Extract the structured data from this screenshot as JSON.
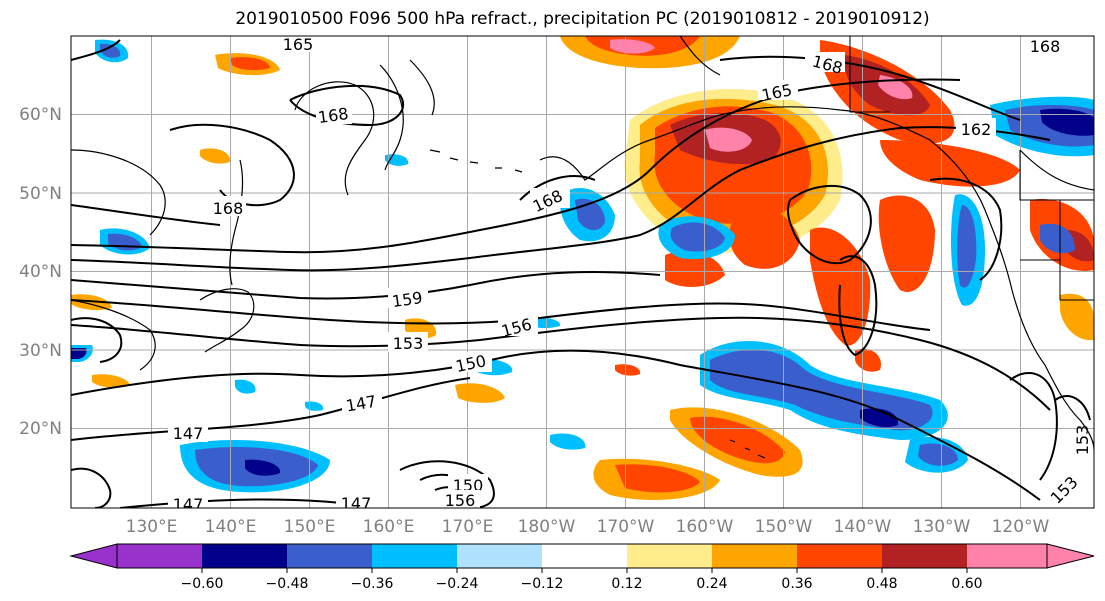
{
  "title": "2019010500 F096 500 hPa refract., precipitation PC (2019010812 - 2019010912)",
  "lat_labels": [
    "60°N",
    "50°N",
    "40°N",
    "30°N",
    "20°N"
  ],
  "lon_labels": [
    "130°E",
    "140°E",
    "150°E",
    "160°E",
    "170°E",
    "180°W",
    "170°W",
    "160°W",
    "150°W",
    "140°W",
    "130°W",
    "120°W"
  ],
  "contour_labels": [
    "165",
    "168",
    "168",
    "168",
    "168",
    "165",
    "168",
    "162",
    "159",
    "156",
    "153",
    "150",
    "147",
    "147",
    "147",
    "147",
    "150",
    "156",
    "153",
    "153"
  ],
  "colorbar": {
    "ticks": [
      "−0.60",
      "−0.48",
      "−0.36",
      "−0.24",
      "−0.12",
      "0.12",
      "0.24",
      "0.36",
      "0.48",
      "0.60"
    ],
    "colors": [
      "#9932cc",
      "#00008b",
      "#3a5fcd",
      "#00bfff",
      "#b0e2ff",
      "#ffffff",
      "#ffec8b",
      "#ffa500",
      "#ff4500",
      "#b22222",
      "#ff82ab"
    ]
  },
  "palette": {
    "neg_060": "#9932cc",
    "neg_048": "#00008b",
    "neg_036": "#3a5fcd",
    "neg_024": "#00bfff",
    "neg_012": "#b0e2ff",
    "pos_012": "#ffec8b",
    "pos_024": "#ffa500",
    "pos_036": "#ff4500",
    "pos_048": "#b22222",
    "pos_060": "#ff82ab"
  }
}
